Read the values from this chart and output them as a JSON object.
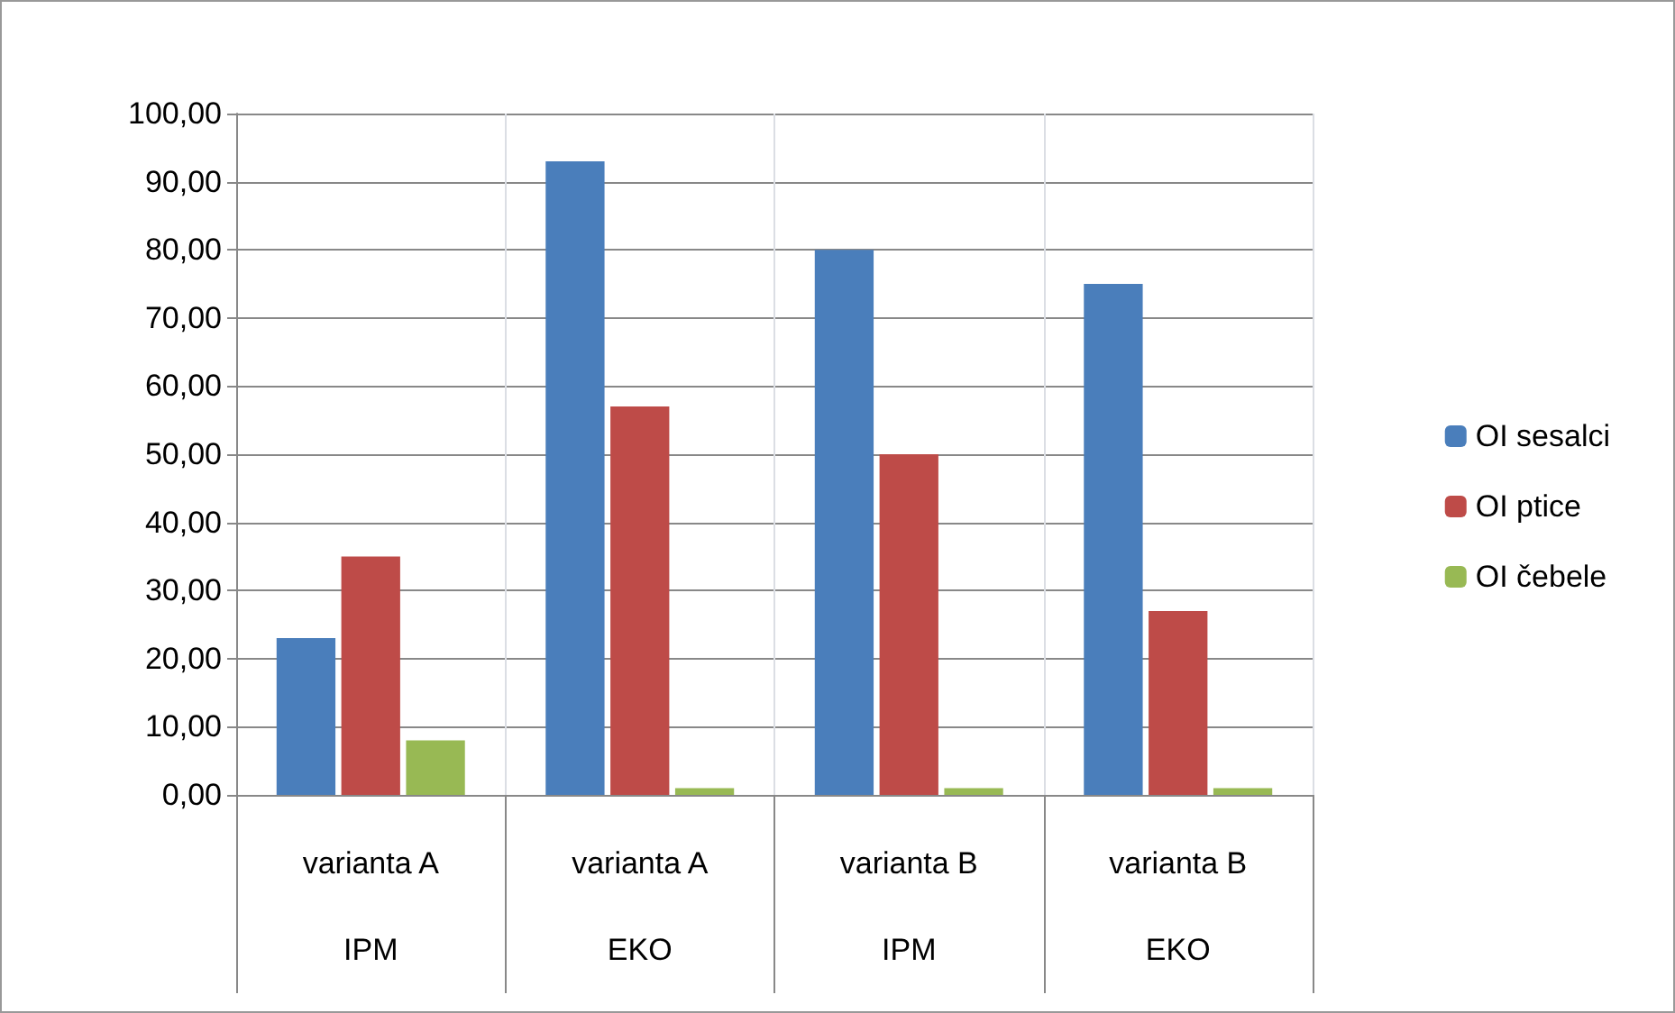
{
  "chart_data": {
    "type": "bar",
    "categories": [
      "varianta A\nIPM",
      "varianta A\nEKO",
      "varianta B\nIPM",
      "varianta B\nEKO"
    ],
    "series": [
      {
        "name": "OI sesalci",
        "color": "#4a7ebb",
        "values": [
          23,
          93,
          80,
          75
        ]
      },
      {
        "name": "OI ptice",
        "color": "#be4b48",
        "values": [
          35,
          57,
          50,
          27
        ]
      },
      {
        "name": "OI čebele",
        "color": "#98b954",
        "values": [
          8,
          1,
          1,
          1
        ]
      }
    ],
    "ylim": [
      0,
      100
    ],
    "yticks": [
      {
        "value": 0,
        "label": "0,00"
      },
      {
        "value": 10,
        "label": "10,00"
      },
      {
        "value": 20,
        "label": "20,00"
      },
      {
        "value": 30,
        "label": "30,00"
      },
      {
        "value": 40,
        "label": "40,00"
      },
      {
        "value": 50,
        "label": "50,00"
      },
      {
        "value": 60,
        "label": "60,00"
      },
      {
        "value": 70,
        "label": "70,00"
      },
      {
        "value": 80,
        "label": "80,00"
      },
      {
        "value": 90,
        "label": "90,00"
      },
      {
        "value": 100,
        "label": "100,00"
      }
    ],
    "grid": true,
    "legend": "right"
  }
}
